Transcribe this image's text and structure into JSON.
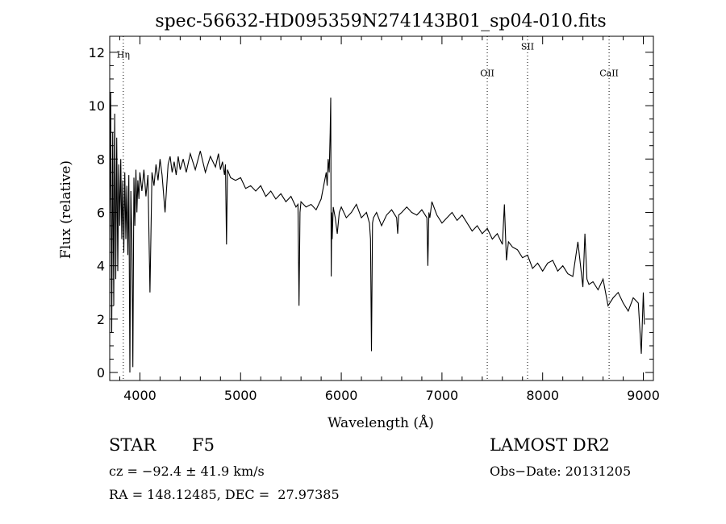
{
  "chart_data": {
    "type": "line",
    "title": "spec-56632-HD095359N274143B01_sp04-010.fits",
    "xlabel": "Wavelength (Å)",
    "ylabel": "Flux (relative)",
    "xlim": [
      3700,
      9100
    ],
    "ylim": [
      -0.3,
      12.6
    ],
    "x_ticks": [
      4000,
      5000,
      6000,
      7000,
      8000,
      9000
    ],
    "x_tick_labels": [
      "4000",
      "5000",
      "6000",
      "7000",
      "8000",
      "9000"
    ],
    "y_ticks": [
      0,
      2,
      4,
      6,
      8,
      10,
      12
    ],
    "y_tick_labels": [
      "0",
      "2",
      "4",
      "6",
      "8",
      "10",
      "12"
    ],
    "grid": false,
    "line_color": "#000000",
    "line_markers": [
      {
        "label": "Hη",
        "x": 3835,
        "label_y": 11.8
      },
      {
        "label": "OII",
        "x": 7450,
        "label_y": 11.1
      },
      {
        "label": "SII",
        "x": 7850,
        "label_y": 12.1
      },
      {
        "label": "CaII",
        "x": 8660,
        "label_y": 11.1
      }
    ],
    "series": [
      {
        "x": [
          3700,
          3710,
          3720,
          3730,
          3740,
          3750,
          3760,
          3770,
          3780,
          3790,
          3800,
          3810,
          3820,
          3830,
          3840,
          3850,
          3860,
          3870,
          3880,
          3890,
          3900,
          3910,
          3920,
          3930,
          3940,
          3950,
          3960,
          3970,
          3980,
          3990,
          4000,
          4020,
          4040,
          4060,
          4080,
          4100,
          4120,
          4140,
          4160,
          4180,
          4200,
          4220,
          4250,
          4280,
          4300,
          4320,
          4340,
          4360,
          4380,
          4400,
          4430,
          4460,
          4500,
          4550,
          4600,
          4650,
          4700,
          4750,
          4780,
          4800,
          4820,
          4840,
          4850,
          4860,
          4870,
          4880,
          4900,
          4950,
          5000,
          5050,
          5100,
          5150,
          5200,
          5250,
          5300,
          5350,
          5400,
          5450,
          5500,
          5550,
          5570,
          5580,
          5590,
          5600,
          5650,
          5700,
          5750,
          5800,
          5850,
          5860,
          5870,
          5880,
          5890,
          5895,
          5900,
          5905,
          5910,
          5920,
          5940,
          5960,
          5980,
          6000,
          6050,
          6100,
          6150,
          6200,
          6250,
          6280,
          6290,
          6300,
          6310,
          6320,
          6350,
          6400,
          6450,
          6500,
          6550,
          6560,
          6570,
          6600,
          6650,
          6700,
          6750,
          6800,
          6850,
          6860,
          6870,
          6880,
          6900,
          6950,
          7000,
          7050,
          7100,
          7150,
          7200,
          7250,
          7300,
          7350,
          7400,
          7450,
          7500,
          7550,
          7600,
          7620,
          7640,
          7660,
          7700,
          7750,
          7800,
          7850,
          7900,
          7950,
          8000,
          8050,
          8100,
          8150,
          8200,
          8250,
          8300,
          8350,
          8400,
          8420,
          8440,
          8460,
          8500,
          8550,
          8600,
          8650,
          8700,
          8750,
          8800,
          8850,
          8900,
          8950,
          8980,
          9000,
          9010
        ],
        "y": [
          5.0,
          10.5,
          1.5,
          9.0,
          2.5,
          9.7,
          3.5,
          8.8,
          3.8,
          7.8,
          5.5,
          8.0,
          5.0,
          7.2,
          4.5,
          7.5,
          5.0,
          7.0,
          4.4,
          7.4,
          0.0,
          6.8,
          5.0,
          0.2,
          7.3,
          5.5,
          7.6,
          6.0,
          7.2,
          6.5,
          7.5,
          6.8,
          7.6,
          6.6,
          7.4,
          3.0,
          7.5,
          7.0,
          7.8,
          7.2,
          8.0,
          7.4,
          6.0,
          7.8,
          8.1,
          7.5,
          7.9,
          7.4,
          8.1,
          7.6,
          8.0,
          7.5,
          8.2,
          7.6,
          8.3,
          7.5,
          8.1,
          7.7,
          8.2,
          7.6,
          7.9,
          7.4,
          7.8,
          4.8,
          7.6,
          7.5,
          7.3,
          7.2,
          7.3,
          6.9,
          7.0,
          6.8,
          7.0,
          6.6,
          6.8,
          6.5,
          6.7,
          6.4,
          6.6,
          6.2,
          6.3,
          2.5,
          6.0,
          6.4,
          6.2,
          6.3,
          6.1,
          6.5,
          7.5,
          7.0,
          8.0,
          7.5,
          9.0,
          10.3,
          3.6,
          6.0,
          5.0,
          6.2,
          5.8,
          5.2,
          6.0,
          6.2,
          5.8,
          6.0,
          6.3,
          5.8,
          6.0,
          5.6,
          5.0,
          0.8,
          5.6,
          5.8,
          6.0,
          5.5,
          5.9,
          6.1,
          5.8,
          5.2,
          5.9,
          6.0,
          6.2,
          6.0,
          5.9,
          6.1,
          5.8,
          4.0,
          6.0,
          5.8,
          6.4,
          5.9,
          5.6,
          5.8,
          6.0,
          5.7,
          5.9,
          5.6,
          5.3,
          5.5,
          5.2,
          5.4,
          5.0,
          5.2,
          4.8,
          6.3,
          4.2,
          4.9,
          4.7,
          4.6,
          4.3,
          4.4,
          3.9,
          4.1,
          3.8,
          4.1,
          4.2,
          3.8,
          4.0,
          3.7,
          3.6,
          4.9,
          3.2,
          5.2,
          3.5,
          3.3,
          3.4,
          3.1,
          3.5,
          2.5,
          2.8,
          3.0,
          2.6,
          2.3,
          2.8,
          2.6,
          0.7,
          3.0,
          1.8
        ]
      }
    ]
  },
  "info": {
    "object_class": "STAR",
    "subclass": "F5",
    "survey": "LAMOST DR2",
    "cz_line": "cz = −92.4 ± 41.9 km/s",
    "obs_date_line": "Obs−Date: 20131205",
    "coords_line": "RA = 148.12485, DEC =  27.97385"
  }
}
